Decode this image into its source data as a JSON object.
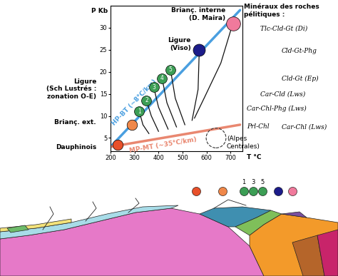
{
  "chart_data": {
    "type": "scatter",
    "x_label": "T °C",
    "y_label": "P Kb",
    "xlim": [
      200,
      750
    ],
    "ylim": [
      2,
      35
    ],
    "xticks": [
      200,
      300,
      400,
      500,
      600,
      700
    ],
    "yticks": [
      5,
      10,
      15,
      20,
      25,
      30
    ],
    "gradients": [
      {
        "label": "HP-BT (~8°C/km)",
        "color": "#4a9fe0",
        "x": [
          200,
          740
        ],
        "y": [
          3,
          34
        ]
      },
      {
        "label": "MP-MT (~35°C/km)",
        "color": "#e98770",
        "x": [
          200,
          740
        ],
        "y": [
          3,
          8
        ]
      }
    ],
    "points": [
      {
        "label": "Dauphinois",
        "color": "#e8502a",
        "x": [
          230
        ],
        "y": [
          3.5
        ]
      },
      {
        "label": "Brianç. ext.",
        "color": "#f0884a",
        "x": [
          290
        ],
        "y": [
          8
        ]
      },
      {
        "label": "Ligure\n(Sch Lustrés :\nzonation O-E)",
        "color": "#3c9e55",
        "x": [
          320,
          350,
          380,
          415,
          450
        ],
        "y": [
          11,
          13.5,
          16.5,
          18.5,
          20.5
        ],
        "point_labels": [
          "1",
          "2",
          "3",
          "4",
          "5"
        ]
      },
      {
        "label": "Ligure\n(Viso)",
        "color": "#1c1c8a",
        "x": [
          570
        ],
        "y": [
          25
        ]
      },
      {
        "label": "Brianç. interne\n(D. Maira)",
        "color": "#f07a9c",
        "x": [
          710
        ],
        "y": [
          31
        ]
      },
      {
        "label": "(Alpes\nCentrales)",
        "color": "#333333",
        "line_style": "dashed",
        "x": [
          640
        ],
        "y": [
          5
        ]
      }
    ],
    "paths": {
      "color": "#111111",
      "lines": [
        {
          "x": [
            320,
            335,
            360
          ],
          "y": [
            11,
            8,
            6
          ]
        },
        {
          "x": [
            350,
            370,
            400
          ],
          "y": [
            13.5,
            10,
            6.5
          ]
        },
        {
          "x": [
            380,
            400,
            440
          ],
          "y": [
            16.5,
            12,
            7
          ]
        },
        {
          "x": [
            415,
            435,
            475
          ],
          "y": [
            18.5,
            13,
            7.5
          ]
        },
        {
          "x": [
            450,
            470,
            510
          ],
          "y": [
            20.5,
            14,
            8
          ]
        },
        {
          "x": [
            570,
            565,
            540
          ],
          "y": [
            25,
            16,
            9
          ]
        },
        {
          "x": [
            710,
            660,
            590,
            550
          ],
          "y": [
            31,
            22,
            14,
            9.5
          ]
        }
      ]
    },
    "minerals": {
      "title": "Minéraux des roches pélitiques :",
      "items": [
        "Tlc-Cld-Gt (Di)",
        "Cld-Gt-Phg",
        "Cld-Gt (Ep)",
        "Car-Cld (Lws)",
        "Car-Chl-Phg (Lws)",
        "Prl-Chl",
        "Car-Chl (Lws)"
      ]
    },
    "section": {
      "labels": [
        "1",
        "3",
        "5"
      ]
    }
  }
}
